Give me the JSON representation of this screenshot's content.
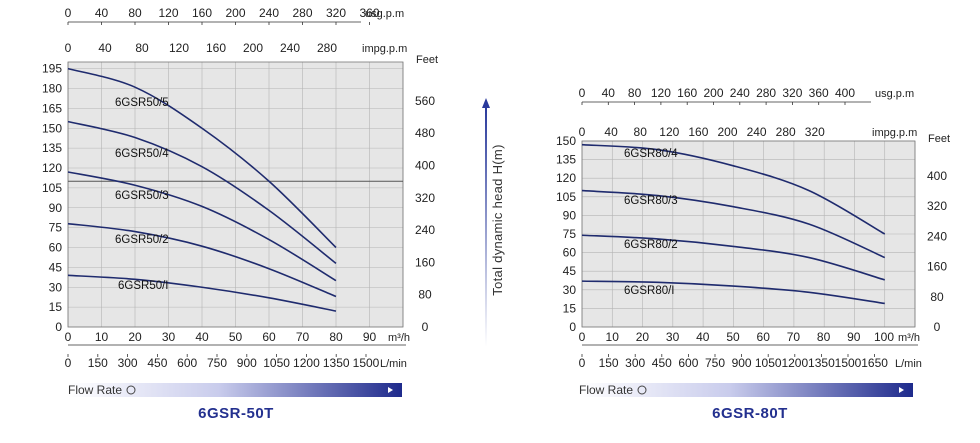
{
  "chart_data": [
    {
      "type": "line",
      "title": "6GSR-50T",
      "flow_rate_label": "Flow Rate",
      "x_unit": "m³/h",
      "x_ticks": [
        0,
        10,
        20,
        30,
        40,
        50,
        60,
        70,
        80,
        90
      ],
      "xlim": [
        0,
        100
      ],
      "lmin_unit": "L/min",
      "lmin_ticks": [
        "0",
        "150",
        "300",
        "450",
        "600",
        "750",
        "900",
        "1050",
        "1200",
        "1350",
        "1500"
      ],
      "usg_unit": "usg.p.m",
      "usg_ticks": [
        "0",
        "40",
        "80",
        "120",
        "160",
        "200",
        "240",
        "280",
        "320",
        "360"
      ],
      "impg_unit": "impg.p.m",
      "impg_ticks": [
        "0",
        "40",
        "80",
        "120",
        "160",
        "200",
        "240",
        "280"
      ],
      "y_ticks": [
        0,
        15,
        30,
        45,
        60,
        75,
        90,
        105,
        120,
        135,
        150,
        165,
        180,
        195
      ],
      "ylim": [
        0,
        200
      ],
      "feet_unit": "Feet",
      "feet_ticks": [
        "0",
        "80",
        "160",
        "240",
        "320",
        "400",
        "480",
        "560"
      ],
      "reference_line_y": 110,
      "series": [
        {
          "name": "6GSR50/5",
          "points": [
            [
              0,
              195
            ],
            [
              20,
              181
            ],
            [
              40,
              150
            ],
            [
              60,
              110
            ],
            [
              80,
              60
            ]
          ]
        },
        {
          "name": "6GSR50/4",
          "points": [
            [
              0,
              155
            ],
            [
              20,
              143
            ],
            [
              40,
              121
            ],
            [
              60,
              88
            ],
            [
              80,
              48
            ]
          ]
        },
        {
          "name": "6GSR50/3",
          "points": [
            [
              0,
              117
            ],
            [
              20,
              107
            ],
            [
              40,
              91
            ],
            [
              60,
              66
            ],
            [
              80,
              35
            ]
          ]
        },
        {
          "name": "6GSR50/2",
          "points": [
            [
              0,
              78
            ],
            [
              20,
              72
            ],
            [
              40,
              61
            ],
            [
              60,
              44
            ],
            [
              80,
              23
            ]
          ]
        },
        {
          "name": "6GSR50/I",
          "points": [
            [
              0,
              39
            ],
            [
              20,
              36
            ],
            [
              40,
              30
            ],
            [
              60,
              22
            ],
            [
              80,
              12
            ]
          ]
        }
      ]
    },
    {
      "type": "line",
      "title": "6GSR-80T",
      "flow_rate_label": "Flow Rate",
      "x_unit": "m³/h",
      "x_ticks": [
        0,
        10,
        20,
        30,
        40,
        50,
        60,
        70,
        80,
        90,
        100
      ],
      "xlim": [
        0,
        110
      ],
      "lmin_unit": "L/min",
      "lmin_ticks": [
        "0",
        "150",
        "300",
        "450",
        "600",
        "750",
        "900",
        "1050",
        "1200",
        "1350",
        "1500",
        "1650"
      ],
      "usg_unit": "usg.p.m",
      "usg_ticks": [
        "0",
        "40",
        "80",
        "120",
        "160",
        "200",
        "240",
        "280",
        "320",
        "360",
        "400"
      ],
      "impg_unit": "impg.p.m",
      "impg_ticks": [
        "0",
        "40",
        "80",
        "120",
        "160",
        "200",
        "240",
        "280",
        "320"
      ],
      "y_ticks": [
        0,
        15,
        30,
        45,
        60,
        75,
        90,
        105,
        120,
        135,
        150
      ],
      "ylim": [
        0,
        150
      ],
      "feet_unit": "Feet",
      "feet_ticks": [
        "0",
        "80",
        "160",
        "240",
        "320",
        "400"
      ],
      "series": [
        {
          "name": "6GSR80/4",
          "points": [
            [
              0,
              147
            ],
            [
              25,
              143
            ],
            [
              50,
              130
            ],
            [
              75,
              110
            ],
            [
              100,
              75
            ]
          ]
        },
        {
          "name": "6GSR80/3",
          "points": [
            [
              0,
              110
            ],
            [
              25,
              106
            ],
            [
              50,
              97
            ],
            [
              75,
              83
            ],
            [
              100,
              56
            ]
          ]
        },
        {
          "name": "6GSR80/2",
          "points": [
            [
              0,
              74
            ],
            [
              25,
              71
            ],
            [
              50,
              65
            ],
            [
              75,
              56
            ],
            [
              100,
              38
            ]
          ]
        },
        {
          "name": "6GSR80/I",
          "points": [
            [
              0,
              37
            ],
            [
              25,
              36
            ],
            [
              50,
              33
            ],
            [
              75,
              28
            ],
            [
              100,
              19
            ]
          ]
        }
      ]
    }
  ],
  "y_axis_label": "Total dynamic head H(m)",
  "colors": {
    "curve": "#1f2b6e",
    "plot_bg": "#e6e6e6",
    "grid": "#b4b4b4",
    "title": "#23308f",
    "bar_start": "#ffffff",
    "bar_end": "#1e2a8c"
  }
}
